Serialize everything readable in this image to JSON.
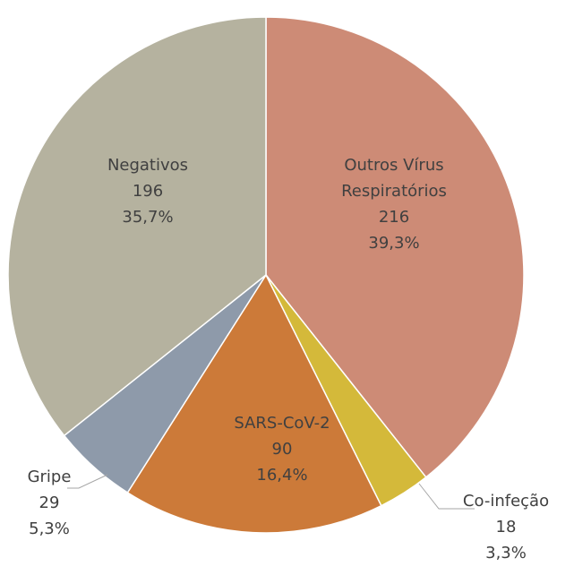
{
  "chart_data": {
    "type": "pie",
    "categories": [
      "Outros Vírus Respiratórios",
      "Co-infeção",
      "SARS-CoV-2",
      "Gripe",
      "Negativos"
    ],
    "values": [
      216,
      18,
      90,
      29,
      196
    ],
    "percent_labels": [
      "39,3%",
      "3,3%",
      "16,4%",
      "5,3%",
      "35,7%"
    ],
    "colors": [
      "#cd8b76",
      "#d4b93a",
      "#cc7a39",
      "#8e9aaa",
      "#b5b29f"
    ]
  }
}
